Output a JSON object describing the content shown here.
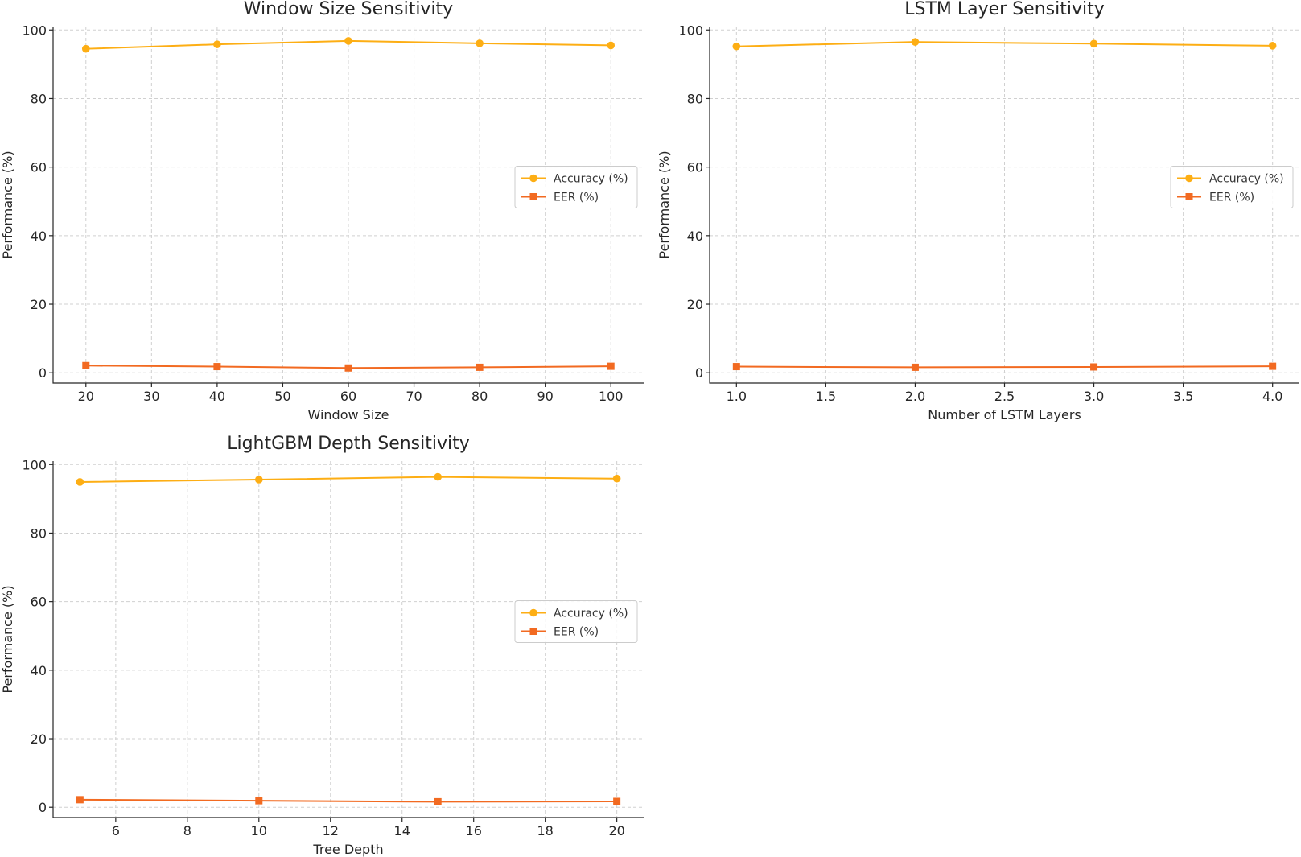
{
  "figure": {
    "colors": {
      "accuracy": "#FDAE14",
      "eer": "#F26A21"
    }
  },
  "chart_data": [
    {
      "type": "line",
      "title": "Window Size Sensitivity",
      "xlabel": "Window Size",
      "ylabel": "Performance (%)",
      "xlim": [
        15,
        105
      ],
      "ylim": [
        -3,
        101
      ],
      "xticks": [
        20,
        30,
        40,
        50,
        60,
        70,
        80,
        90,
        100
      ],
      "xtick_labels": [
        "20",
        "30",
        "40",
        "50",
        "60",
        "70",
        "80",
        "90",
        "100"
      ],
      "yticks": [
        0,
        20,
        40,
        60,
        80,
        100
      ],
      "ytick_labels": [
        "0",
        "20",
        "40",
        "60",
        "80",
        "100"
      ],
      "grid": true,
      "legend_position": "center-right",
      "x": [
        20,
        40,
        60,
        80,
        100
      ],
      "series": [
        {
          "name": "Accuracy (%)",
          "marker": "circle",
          "color": "#FDAE14",
          "values": [
            94.5,
            95.8,
            96.8,
            96.1,
            95.5
          ]
        },
        {
          "name": "EER (%)",
          "marker": "square",
          "color": "#F26A21",
          "values": [
            2.1,
            1.8,
            1.4,
            1.6,
            1.9
          ]
        }
      ]
    },
    {
      "type": "line",
      "title": "LSTM Layer Sensitivity",
      "xlabel": "Number of LSTM Layers",
      "ylabel": "Performance (%)",
      "xlim": [
        0.85,
        4.15
      ],
      "ylim": [
        -3,
        101
      ],
      "xticks": [
        1.0,
        1.5,
        2.0,
        2.5,
        3.0,
        3.5,
        4.0
      ],
      "xtick_labels": [
        "1.0",
        "1.5",
        "2.0",
        "2.5",
        "3.0",
        "3.5",
        "4.0"
      ],
      "yticks": [
        0,
        20,
        40,
        60,
        80,
        100
      ],
      "ytick_labels": [
        "0",
        "20",
        "40",
        "60",
        "80",
        "100"
      ],
      "grid": true,
      "legend_position": "center-right",
      "x": [
        1,
        2,
        3,
        4
      ],
      "series": [
        {
          "name": "Accuracy (%)",
          "marker": "circle",
          "color": "#FDAE14",
          "values": [
            95.2,
            96.5,
            96.0,
            95.4
          ]
        },
        {
          "name": "EER (%)",
          "marker": "square",
          "color": "#F26A21",
          "values": [
            1.8,
            1.6,
            1.7,
            1.9
          ]
        }
      ]
    },
    {
      "type": "line",
      "title": "LightGBM Depth Sensitivity",
      "xlabel": "Tree Depth",
      "ylabel": "Performance (%)",
      "xlim": [
        4.25,
        20.75
      ],
      "ylim": [
        -3,
        101
      ],
      "xticks": [
        6,
        8,
        10,
        12,
        14,
        16,
        18,
        20
      ],
      "xtick_labels": [
        "6",
        "8",
        "10",
        "12",
        "14",
        "16",
        "18",
        "20"
      ],
      "yticks": [
        0,
        20,
        40,
        60,
        80,
        100
      ],
      "ytick_labels": [
        "0",
        "20",
        "40",
        "60",
        "80",
        "100"
      ],
      "grid": true,
      "legend_position": "center-right",
      "x": [
        5,
        10,
        15,
        20
      ],
      "series": [
        {
          "name": "Accuracy (%)",
          "marker": "circle",
          "color": "#FDAE14",
          "values": [
            94.9,
            95.6,
            96.4,
            95.9
          ]
        },
        {
          "name": "EER (%)",
          "marker": "square",
          "color": "#F26A21",
          "values": [
            2.2,
            1.9,
            1.6,
            1.7
          ]
        }
      ]
    }
  ]
}
